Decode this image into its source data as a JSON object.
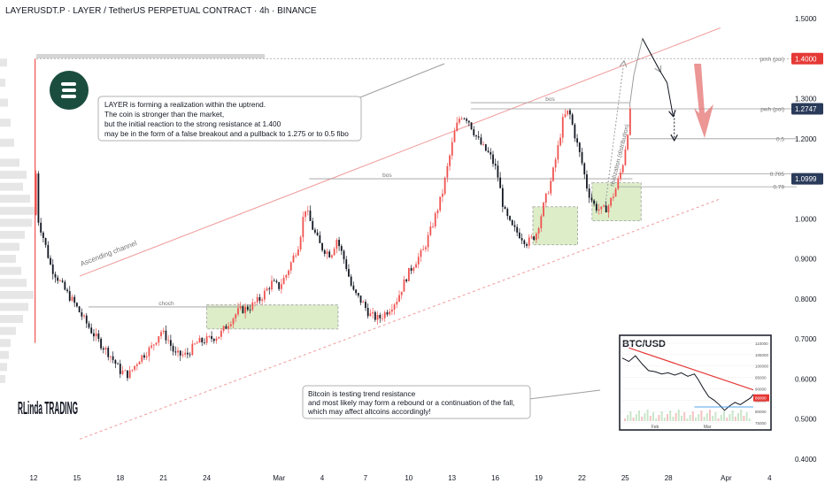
{
  "header": {
    "title": "LAYERUSDT.P · LAYER / TetherUS PERPETUAL CONTRACT · 4h · BINANCE"
  },
  "colors": {
    "up": "#ef5350",
    "down": "#131722",
    "channel": "#ef9a9a",
    "zone": "#dcedc8",
    "price_tag": "#2a3a5a",
    "accent_red": "#e53935",
    "logo": "#1b4d3e"
  },
  "chart_data": {
    "type": "candlestick",
    "title": "LAYERUSDT.P · LAYER / TetherUS PERPETUAL CONTRACT · 4h · BINANCE",
    "x_ticks": [
      "12",
      "15",
      "18",
      "21",
      "24",
      "Mar",
      "4",
      "7",
      "10",
      "13",
      "16",
      "19",
      "22",
      "25",
      "28",
      "Apr",
      "4"
    ],
    "y_ticks": [
      "1.5000",
      "1.4000",
      "1.3000",
      "1.2000",
      "1.1000",
      "1.0000",
      "0.9000",
      "0.8000",
      "0.7000",
      "0.6000",
      "0.5000",
      "0.4000"
    ],
    "ylim": [
      0.39,
      1.54
    ],
    "price_tags": [
      {
        "label": "1.4000",
        "value": 1.4,
        "style": "red"
      },
      {
        "label": "1.2747",
        "value": 1.2747,
        "style": "dark"
      },
      {
        "label": "1.0999",
        "value": 1.0999,
        "style": "dark"
      }
    ],
    "levels": [
      {
        "label": "pmh (poi)",
        "value": 1.4
      },
      {
        "label": "pwh (poi)",
        "value": 1.2747
      },
      {
        "label": "0.5",
        "value": 1.2
      },
      {
        "label": "0.705",
        "value": 1.112
      },
      {
        "label": "0.79",
        "value": 1.08
      }
    ],
    "structure_labels": [
      {
        "label": "choch",
        "value": 0.78
      },
      {
        "label": "bos",
        "value": 1.1
      },
      {
        "label": "bos",
        "value": 1.29
      }
    ],
    "annotations": [
      "Ascending channel",
      "realization (distribution)",
      "LAYER is forming a realization within the uptrend.",
      "The coin is stronger than the market,",
      "but the initial reaction to the strong resistance at 1.400",
      "may be in the form of a false breakout and a pullback to 1.275 or to 0.5 fibo",
      "Bitcoin is testing trend resistance",
      "and most likely may form a rebound or a continuation of the fall,",
      "which may affect altcoins accordingly!"
    ],
    "series": [
      {
        "path": [
          [
            0.0,
            1.01
          ],
          [
            0.1,
            1.17
          ],
          [
            0.3,
            1.0
          ],
          [
            0.7,
            0.95
          ],
          [
            1.2,
            0.88
          ],
          [
            1.7,
            0.85
          ],
          [
            2.2,
            0.82
          ],
          [
            2.8,
            0.79
          ],
          [
            3.3,
            0.76
          ],
          [
            4.0,
            0.72
          ],
          [
            4.6,
            0.69
          ],
          [
            5.3,
            0.66
          ],
          [
            6.0,
            0.62
          ],
          [
            6.6,
            0.61
          ],
          [
            7.3,
            0.65
          ],
          [
            8.2,
            0.68
          ],
          [
            8.8,
            0.72
          ],
          [
            9.3,
            0.7
          ],
          [
            9.8,
            0.66
          ],
          [
            10.6,
            0.66
          ],
          [
            11.3,
            0.69
          ],
          [
            12.2,
            0.7
          ],
          [
            12.9,
            0.71
          ],
          [
            13.5,
            0.74
          ],
          [
            14.2,
            0.77
          ],
          [
            15.0,
            0.78
          ],
          [
            15.7,
            0.8
          ],
          [
            16.5,
            0.84
          ],
          [
            17.0,
            0.83
          ],
          [
            17.5,
            0.86
          ],
          [
            18.4,
            0.94
          ],
          [
            18.8,
            1.03
          ],
          [
            19.3,
            0.98
          ],
          [
            19.9,
            0.93
          ],
          [
            20.6,
            0.91
          ],
          [
            21.0,
            0.95
          ],
          [
            21.6,
            0.89
          ],
          [
            22.1,
            0.82
          ],
          [
            22.8,
            0.79
          ],
          [
            23.3,
            0.76
          ],
          [
            23.9,
            0.75
          ],
          [
            24.5,
            0.77
          ],
          [
            25.2,
            0.8
          ],
          [
            25.9,
            0.86
          ],
          [
            26.4,
            0.89
          ],
          [
            27.0,
            0.92
          ],
          [
            27.6,
            0.98
          ],
          [
            28.3,
            1.06
          ],
          [
            28.8,
            1.15
          ],
          [
            29.2,
            1.22
          ],
          [
            29.6,
            1.26
          ],
          [
            30.1,
            1.25
          ],
          [
            30.6,
            1.21
          ],
          [
            31.1,
            1.18
          ],
          [
            31.6,
            1.16
          ],
          [
            32.1,
            1.12
          ],
          [
            32.6,
            1.02
          ],
          [
            33.1,
            0.98
          ],
          [
            33.7,
            0.96
          ],
          [
            34.2,
            0.94
          ],
          [
            34.8,
            0.96
          ],
          [
            35.4,
            1.04
          ],
          [
            35.9,
            1.1
          ],
          [
            36.3,
            1.17
          ],
          [
            36.7,
            1.25
          ],
          [
            37.1,
            1.27
          ],
          [
            37.5,
            1.21
          ],
          [
            38.0,
            1.14
          ],
          [
            38.4,
            1.07
          ],
          [
            38.9,
            1.03
          ],
          [
            39.4,
            1.02
          ],
          [
            39.8,
            1.03
          ],
          [
            40.3,
            1.07
          ],
          [
            40.8,
            1.13
          ],
          [
            41.1,
            1.2
          ],
          [
            41.4,
            1.28
          ]
        ]
      },
      {
        "path": [
          [
            41.6,
            1.36
          ],
          [
            42.2,
            1.45
          ],
          [
            42.8,
            1.41
          ],
          [
            43.4,
            1.37
          ]
        ]
      },
      {
        "path": [
          [
            43.4,
            1.37
          ],
          [
            43.9,
            1.34
          ],
          [
            44.3,
            1.26
          ]
        ]
      }
    ],
    "inset": {
      "title": "BTC/USD",
      "x_ticks": [
        "Feb",
        "Mar"
      ],
      "y_ticks": [
        "110000",
        "105000",
        "100000",
        "95000",
        "90000",
        "85000",
        "80000",
        "75000"
      ],
      "path": [
        [
          0.0,
          103500
        ],
        [
          0.05,
          102000
        ],
        [
          0.1,
          104500
        ],
        [
          0.15,
          101000
        ],
        [
          0.2,
          98000
        ],
        [
          0.25,
          97500
        ],
        [
          0.3,
          96500
        ],
        [
          0.35,
          97000
        ],
        [
          0.4,
          96000
        ],
        [
          0.45,
          97000
        ],
        [
          0.5,
          95500
        ],
        [
          0.55,
          96500
        ],
        [
          0.58,
          94000
        ],
        [
          0.62,
          90000
        ],
        [
          0.66,
          86500
        ],
        [
          0.7,
          85000
        ],
        [
          0.74,
          83000
        ],
        [
          0.78,
          80500
        ],
        [
          0.82,
          82500
        ],
        [
          0.86,
          84000
        ],
        [
          0.9,
          83000
        ],
        [
          0.94,
          84500
        ],
        [
          0.98,
          86000
        ],
        [
          1.0,
          87500
        ]
      ],
      "price_tag": "86000"
    },
    "branding": {
      "name": "RLinda TRADING"
    }
  }
}
